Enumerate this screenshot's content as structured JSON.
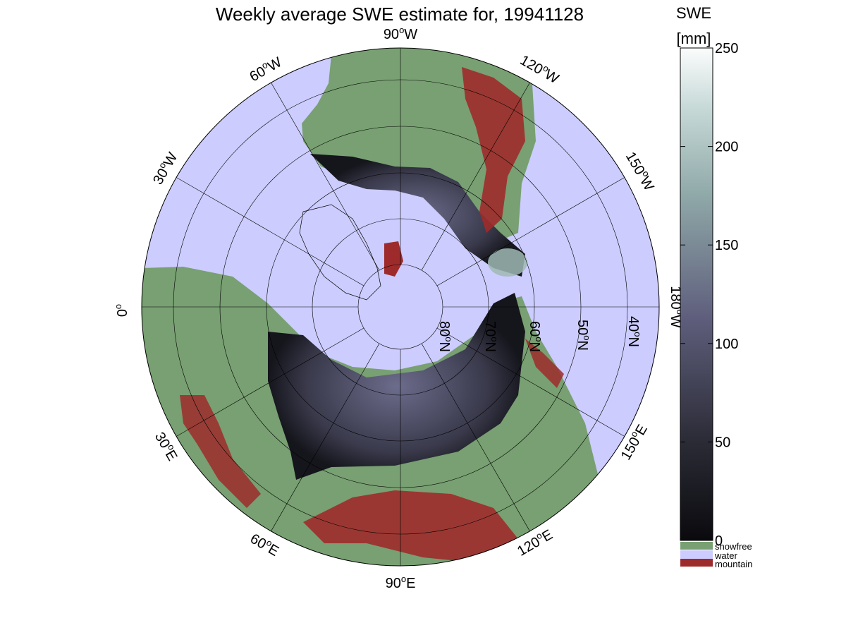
{
  "title": "Weekly average SWE estimate for, 19941128",
  "colors": {
    "water": "#ccccff",
    "snowfree": "#78a072",
    "mountain": "#9e2b2b",
    "snow_dark": "#15151c",
    "snow_mid": "#5a5a78",
    "snow_light": "#b9d2cf",
    "grid": "#000000"
  },
  "meridian_labels": [
    {
      "lon": "90",
      "dir": "W"
    },
    {
      "lon": "120",
      "dir": "W"
    },
    {
      "lon": "150",
      "dir": "W"
    },
    {
      "lon": "180",
      "dir": "W"
    },
    {
      "lon": "150",
      "dir": "E"
    },
    {
      "lon": "120",
      "dir": "E"
    },
    {
      "lon": "90",
      "dir": "E"
    },
    {
      "lon": "60",
      "dir": "E"
    },
    {
      "lon": "30",
      "dir": "E"
    },
    {
      "lon": "0",
      "dir": ""
    },
    {
      "lon": "30",
      "dir": "W"
    },
    {
      "lon": "60",
      "dir": "W"
    }
  ],
  "parallel_labels": [
    {
      "lat": "80",
      "dir": "N"
    },
    {
      "lat": "70",
      "dir": "N"
    },
    {
      "lat": "60",
      "dir": "N"
    },
    {
      "lat": "50",
      "dir": "N"
    },
    {
      "lat": "40",
      "dir": "N"
    }
  ],
  "colorbar": {
    "title": "SWE",
    "unit": "[mm]",
    "min": 0,
    "max": 250,
    "ticks": [
      "0",
      "50",
      "100",
      "150",
      "200",
      "250"
    ]
  },
  "legend": [
    {
      "label": "snowfree",
      "color": "#78a072"
    },
    {
      "label": "water",
      "color": "#ccccff"
    },
    {
      "label": "mountain",
      "color": "#9e2b2b"
    }
  ]
}
